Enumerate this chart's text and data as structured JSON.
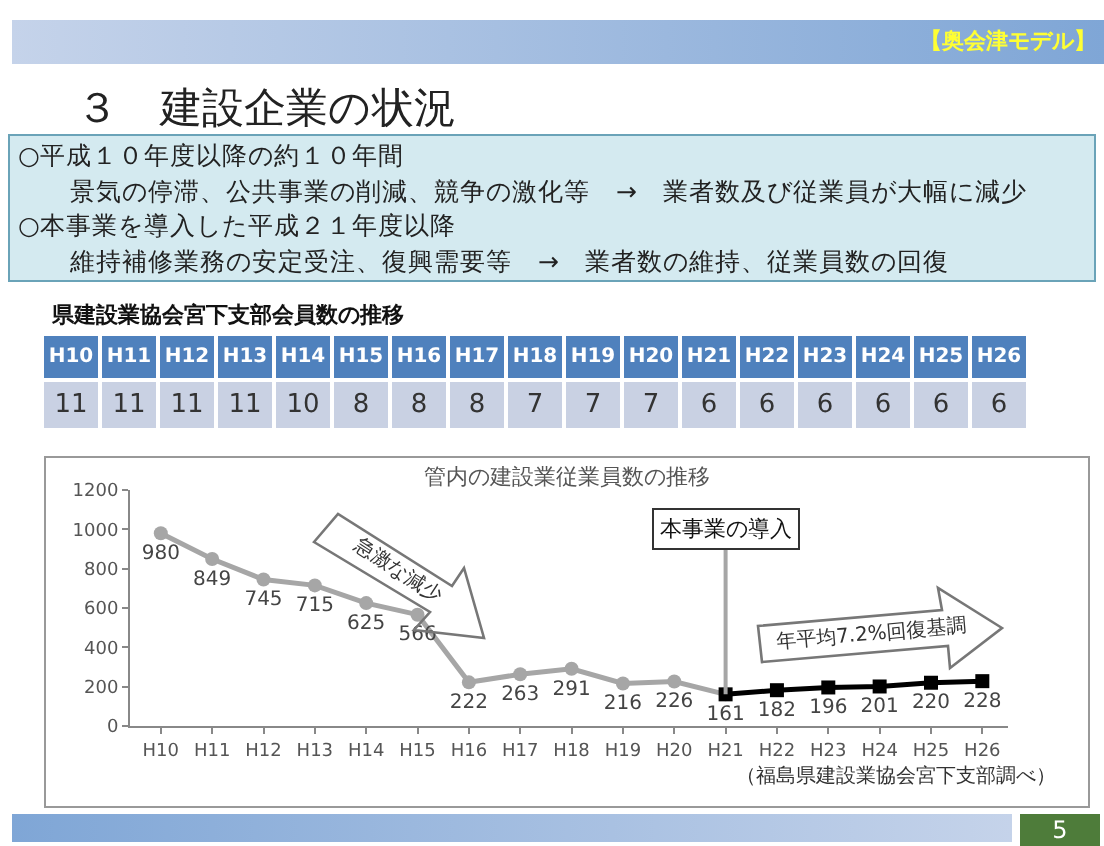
{
  "chart_data": [
    {
      "type": "other",
      "title": "３　建設企業の状況",
      "annotations": [
        "【奥会津モデル】",
        "○平成１０年度以降の約１０年間",
        "景気の停滞、公共事業の削減、競争の激化等　→　業者数及び従業員が大幅に減少",
        "○本事業を導入した平成２１年度以降",
        "維持補修業務の安定受注、復興需要等　→　業者数の維持、従業員数の回復",
        "5"
      ]
    },
    {
      "type": "other",
      "title": "県建設業協会宮下支部会員数の推移",
      "categories": [
        "H10",
        "H11",
        "H12",
        "H13",
        "H14",
        "H15",
        "H16",
        "H17",
        "H18",
        "H19",
        "H20",
        "H21",
        "H22",
        "H23",
        "H24",
        "H25",
        "H26"
      ],
      "values": [
        11,
        11,
        11,
        11,
        10,
        8,
        8,
        8,
        7,
        7,
        7,
        6,
        6,
        6,
        6,
        6,
        6
      ],
      "data_labels": true
    },
    {
      "type": "line",
      "title": "管内の建設業従業員数の推移",
      "categories": [
        "H10",
        "H11",
        "H12",
        "H13",
        "H14",
        "H15",
        "H16",
        "H17",
        "H18",
        "H19",
        "H20",
        "H21",
        "H22",
        "H23",
        "H24",
        "H25",
        "H26"
      ],
      "series": [
        {
          "color": "#a6a6a6",
          "marker": "circle",
          "values": [
            980,
            849,
            745,
            715,
            625,
            566,
            222,
            263,
            291,
            216,
            226,
            161,
            null,
            null,
            null,
            null,
            null
          ],
          "value_labels": [
            "980",
            "849",
            "745",
            "715",
            "625",
            "566",
            "222",
            "263",
            "291",
            "216",
            "226",
            "161",
            null,
            null,
            null,
            null,
            null
          ]
        },
        {
          "color": "#000000",
          "marker": "square",
          "values": [
            null,
            null,
            null,
            null,
            null,
            null,
            null,
            null,
            null,
            null,
            null,
            161,
            182,
            196,
            201,
            220,
            228
          ],
          "value_labels": [
            null,
            null,
            null,
            null,
            null,
            null,
            null,
            null,
            null,
            null,
            null,
            null,
            "182",
            "196",
            "201",
            "220",
            "228"
          ]
        }
      ],
      "ylim": [
        0,
        1200
      ],
      "yticks": [
        0,
        200,
        400,
        600,
        800,
        1000,
        1200
      ],
      "grid": false,
      "ref_lines": [
        {
          "axis": "x",
          "value": "H21",
          "label": "本事業の導入",
          "color": "#a6a6a6"
        }
      ],
      "annotations": [
        "急激な減少",
        "年平均7.2%回復基調",
        "（福島県建設業協会宮下支部調べ）"
      ]
    }
  ]
}
